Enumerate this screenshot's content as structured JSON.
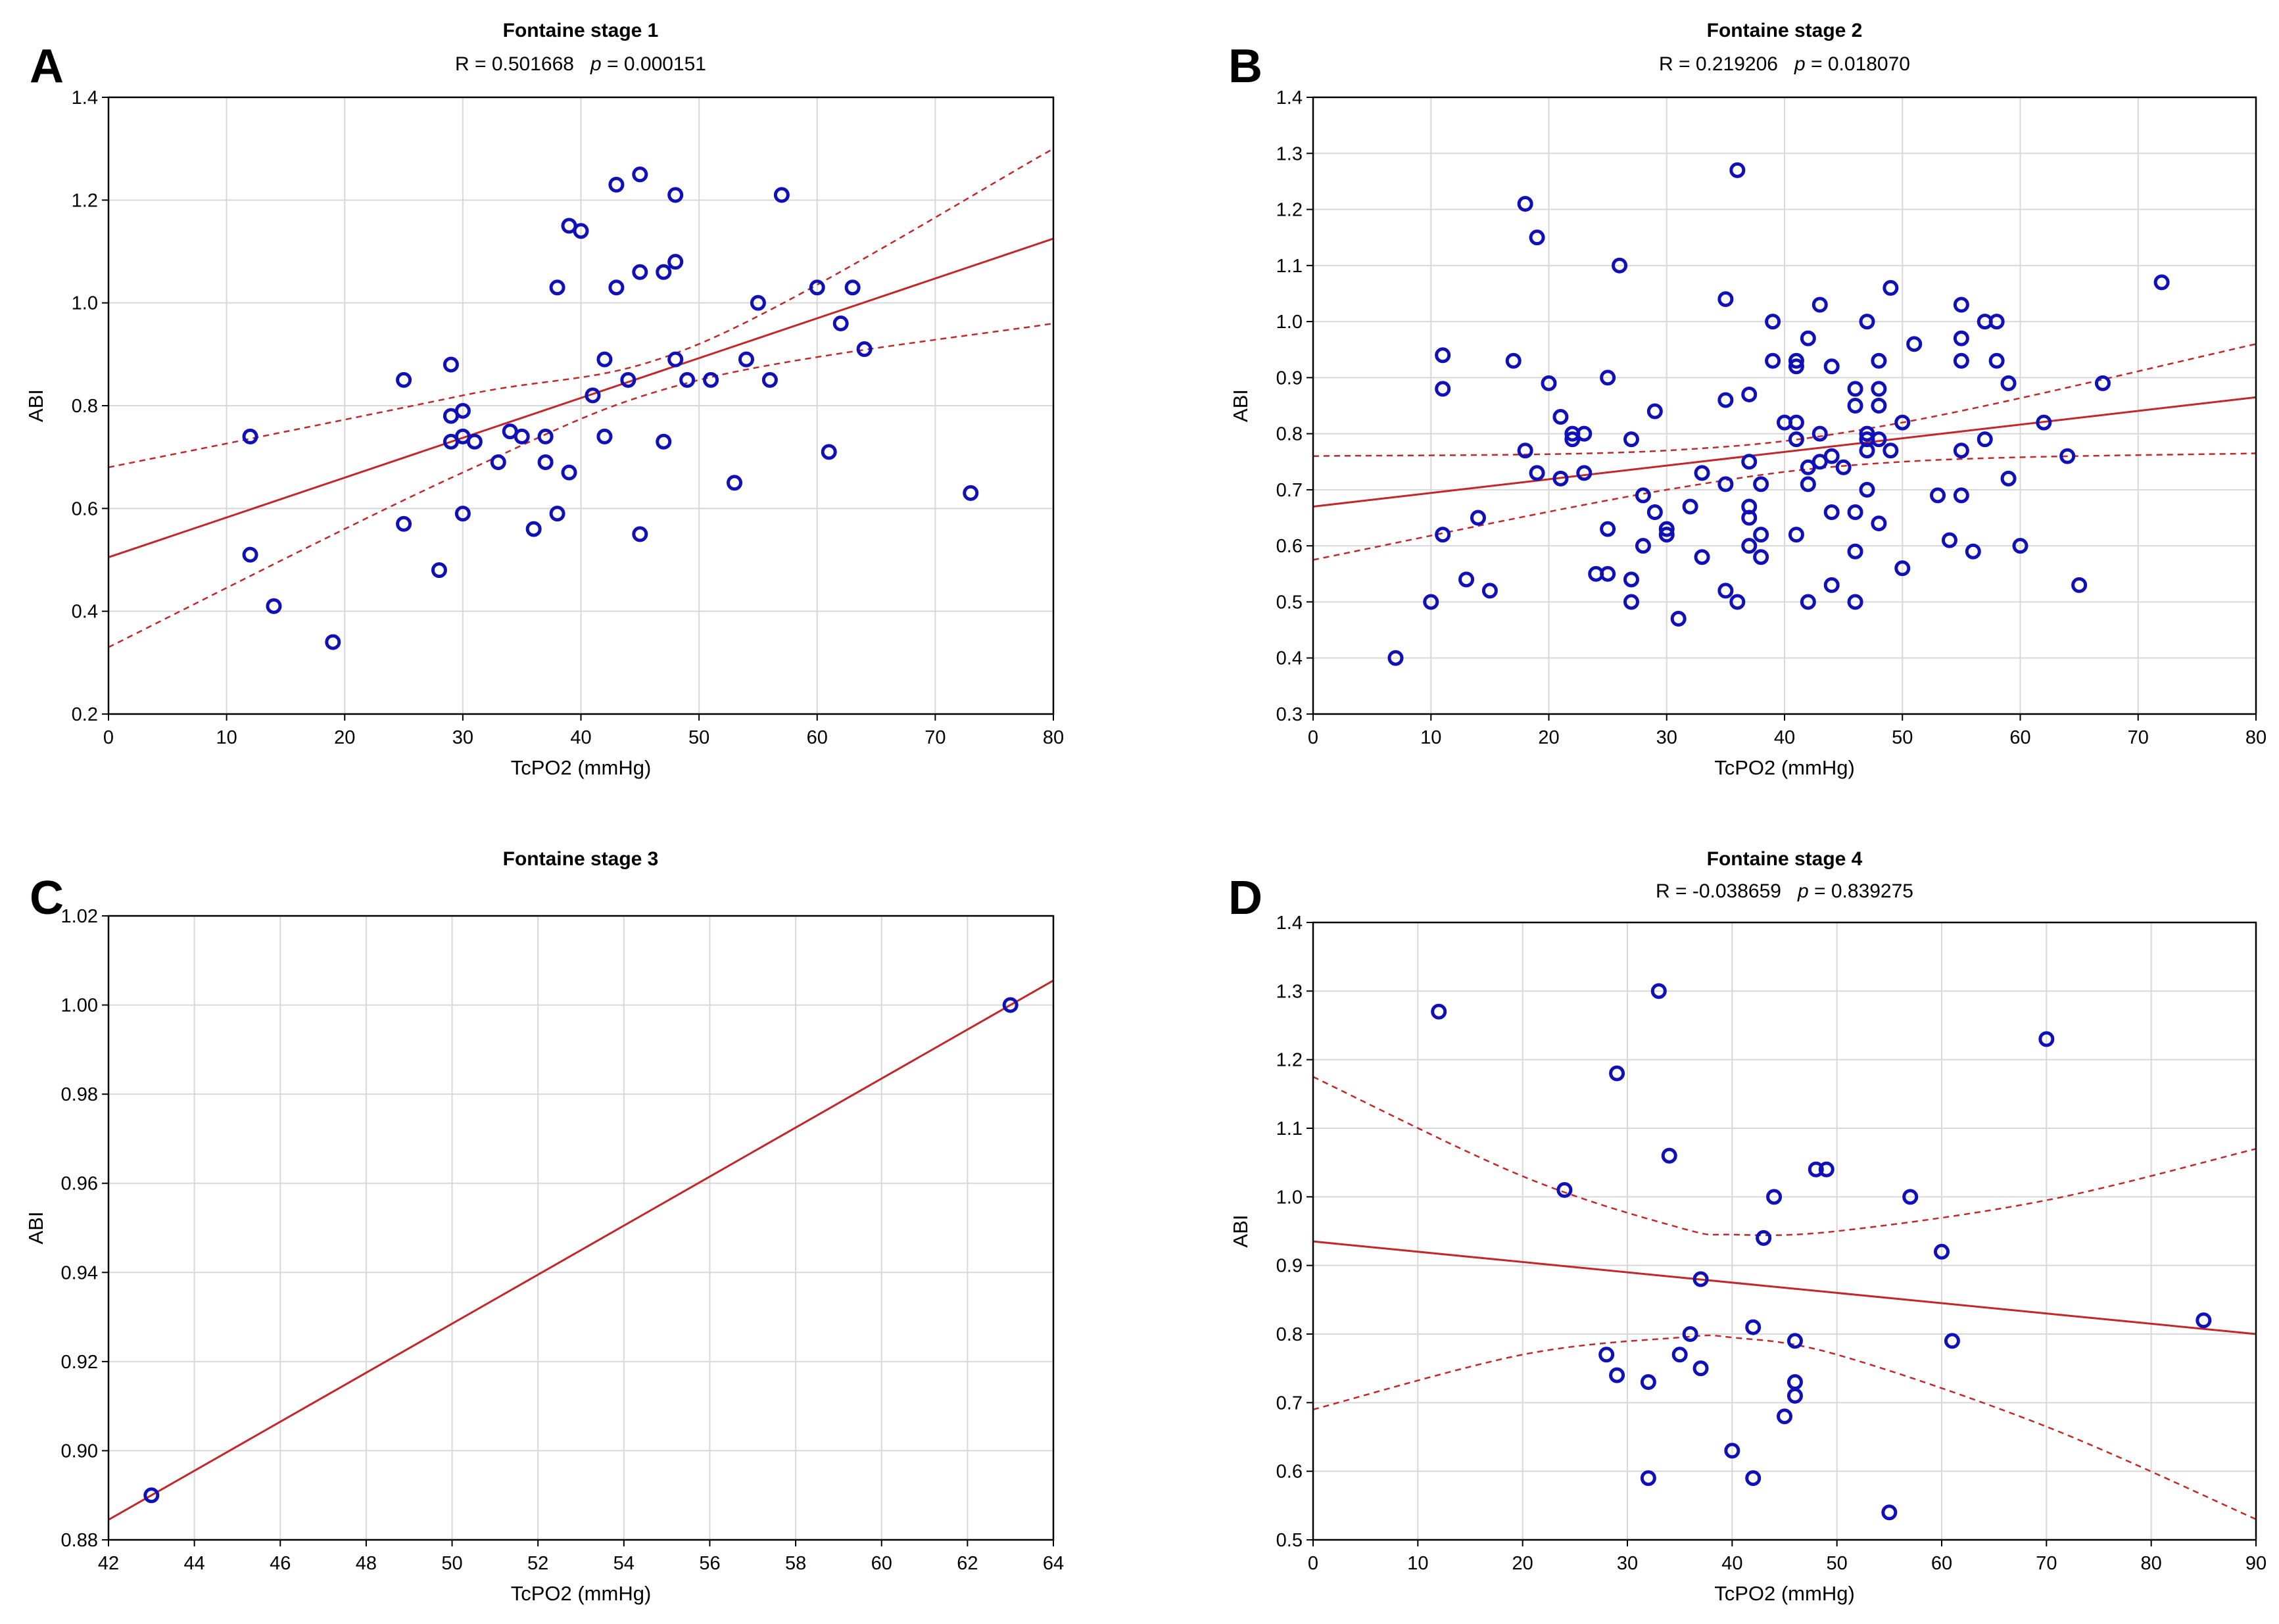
{
  "colors": {
    "points": "#1010b8",
    "fit": "#c0282a",
    "grid": "#d8d8d8"
  },
  "chart_data": [
    {
      "letter": "A",
      "type": "scatter",
      "title": "Fontaine stage 1",
      "stat_r": "R = 0.501668",
      "stat_p_label": "p",
      "stat_p_value": " = 0.000151",
      "xlabel": "TcPO2 (mmHg)",
      "ylabel": "ABI",
      "xlim": [
        0,
        80
      ],
      "ylim": [
        0.2,
        1.4
      ],
      "xticks": [
        0,
        10,
        20,
        30,
        40,
        50,
        60,
        70,
        80
      ],
      "yticks": [
        0.2,
        0.4,
        0.6,
        0.8,
        1.0,
        1.2,
        1.4
      ],
      "ydecimals": 1,
      "fit_line": [
        [
          0,
          0.505
        ],
        [
          80,
          1.125
        ]
      ],
      "ci_upper": [
        [
          0,
          0.68
        ],
        [
          30,
          0.82
        ],
        [
          50,
          0.92
        ],
        [
          80,
          1.3
        ]
      ],
      "ci_lower": [
        [
          0,
          0.33
        ],
        [
          30,
          0.67
        ],
        [
          50,
          0.85
        ],
        [
          80,
          0.96
        ]
      ],
      "points": [
        [
          12,
          0.74
        ],
        [
          12,
          0.51
        ],
        [
          14,
          0.41
        ],
        [
          19,
          0.34
        ],
        [
          25,
          0.85
        ],
        [
          25,
          0.57
        ],
        [
          28,
          0.48
        ],
        [
          29,
          0.88
        ],
        [
          29,
          0.78
        ],
        [
          29,
          0.73
        ],
        [
          30,
          0.79
        ],
        [
          30,
          0.74
        ],
        [
          30,
          0.59
        ],
        [
          31,
          0.73
        ],
        [
          33,
          0.69
        ],
        [
          34,
          0.75
        ],
        [
          35,
          0.74
        ],
        [
          36,
          0.56
        ],
        [
          37,
          0.74
        ],
        [
          37,
          0.69
        ],
        [
          38,
          1.03
        ],
        [
          38,
          0.59
        ],
        [
          39,
          1.15
        ],
        [
          39,
          0.67
        ],
        [
          40,
          1.14
        ],
        [
          41,
          0.82
        ],
        [
          42,
          0.89
        ],
        [
          42,
          0.74
        ],
        [
          43,
          1.23
        ],
        [
          43,
          1.03
        ],
        [
          44,
          0.85
        ],
        [
          45,
          1.25
        ],
        [
          45,
          1.06
        ],
        [
          45,
          0.55
        ],
        [
          47,
          1.06
        ],
        [
          47,
          0.73
        ],
        [
          48,
          1.21
        ],
        [
          48,
          1.08
        ],
        [
          48,
          0.89
        ],
        [
          49,
          0.85
        ],
        [
          51,
          0.85
        ],
        [
          53,
          0.65
        ],
        [
          54,
          0.89
        ],
        [
          55,
          1.0
        ],
        [
          56,
          0.85
        ],
        [
          57,
          1.21
        ],
        [
          60,
          1.03
        ],
        [
          61,
          0.71
        ],
        [
          62,
          0.96
        ],
        [
          63,
          1.03
        ],
        [
          64,
          0.91
        ],
        [
          73,
          0.63
        ]
      ]
    },
    {
      "letter": "B",
      "type": "scatter",
      "title": "Fontaine stage 2",
      "stat_r": "R = 0.219206",
      "stat_p_label": "p",
      "stat_p_value": " = 0.018070",
      "xlabel": "TcPO2 (mmHg)",
      "ylabel": "ABI",
      "xlim": [
        0,
        80
      ],
      "ylim": [
        0.3,
        1.4
      ],
      "xticks": [
        0,
        10,
        20,
        30,
        40,
        50,
        60,
        70,
        80
      ],
      "yticks": [
        0.3,
        0.4,
        0.5,
        0.6,
        0.7,
        0.8,
        0.9,
        1.0,
        1.1,
        1.2,
        1.3,
        1.4
      ],
      "ydecimals": 1,
      "fit_line": [
        [
          0,
          0.67
        ],
        [
          80,
          0.865
        ]
      ],
      "ci_upper": [
        [
          0,
          0.76
        ],
        [
          30,
          0.77
        ],
        [
          50,
          0.82
        ],
        [
          80,
          0.96
        ]
      ],
      "ci_lower": [
        [
          0,
          0.575
        ],
        [
          30,
          0.7
        ],
        [
          50,
          0.75
        ],
        [
          80,
          0.765
        ]
      ],
      "points": [
        [
          7,
          0.4
        ],
        [
          10,
          0.5
        ],
        [
          11,
          0.94
        ],
        [
          11,
          0.88
        ],
        [
          11,
          0.62
        ],
        [
          13,
          0.54
        ],
        [
          14,
          0.65
        ],
        [
          15,
          0.52
        ],
        [
          17,
          0.93
        ],
        [
          18,
          1.21
        ],
        [
          18,
          0.77
        ],
        [
          19,
          1.15
        ],
        [
          19,
          0.73
        ],
        [
          20,
          0.89
        ],
        [
          21,
          0.83
        ],
        [
          21,
          0.72
        ],
        [
          22,
          0.8
        ],
        [
          22,
          0.79
        ],
        [
          23,
          0.8
        ],
        [
          23,
          0.73
        ],
        [
          24,
          0.55
        ],
        [
          25,
          0.9
        ],
        [
          25,
          0.63
        ],
        [
          25,
          0.55
        ],
        [
          26,
          1.1
        ],
        [
          27,
          0.79
        ],
        [
          27,
          0.54
        ],
        [
          27,
          0.5
        ],
        [
          28,
          0.69
        ],
        [
          28,
          0.6
        ],
        [
          29,
          0.84
        ],
        [
          29,
          0.66
        ],
        [
          30,
          0.63
        ],
        [
          30,
          0.62
        ],
        [
          31,
          0.47
        ],
        [
          32,
          0.67
        ],
        [
          33,
          0.73
        ],
        [
          33,
          0.58
        ],
        [
          35,
          1.04
        ],
        [
          35,
          0.86
        ],
        [
          35,
          0.71
        ],
        [
          35,
          0.52
        ],
        [
          36,
          1.27
        ],
        [
          36,
          0.5
        ],
        [
          37,
          0.87
        ],
        [
          37,
          0.75
        ],
        [
          37,
          0.67
        ],
        [
          37,
          0.65
        ],
        [
          37,
          0.6
        ],
        [
          38,
          0.71
        ],
        [
          38,
          0.62
        ],
        [
          38,
          0.58
        ],
        [
          39,
          1.0
        ],
        [
          39,
          0.93
        ],
        [
          40,
          0.82
        ],
        [
          41,
          0.93
        ],
        [
          41,
          0.92
        ],
        [
          41,
          0.82
        ],
        [
          41,
          0.79
        ],
        [
          41,
          0.62
        ],
        [
          42,
          0.97
        ],
        [
          42,
          0.74
        ],
        [
          42,
          0.71
        ],
        [
          42,
          0.5
        ],
        [
          43,
          1.03
        ],
        [
          43,
          0.8
        ],
        [
          43,
          0.75
        ],
        [
          44,
          0.92
        ],
        [
          44,
          0.76
        ],
        [
          44,
          0.66
        ],
        [
          44,
          0.53
        ],
        [
          45,
          0.74
        ],
        [
          46,
          0.88
        ],
        [
          46,
          0.85
        ],
        [
          46,
          0.66
        ],
        [
          46,
          0.59
        ],
        [
          46,
          0.5
        ],
        [
          47,
          1.0
        ],
        [
          47,
          0.8
        ],
        [
          47,
          0.79
        ],
        [
          47,
          0.77
        ],
        [
          47,
          0.7
        ],
        [
          48,
          0.93
        ],
        [
          48,
          0.88
        ],
        [
          48,
          0.85
        ],
        [
          48,
          0.79
        ],
        [
          48,
          0.64
        ],
        [
          49,
          1.06
        ],
        [
          49,
          0.77
        ],
        [
          50,
          0.82
        ],
        [
          50,
          0.56
        ],
        [
          51,
          0.96
        ],
        [
          53,
          0.69
        ],
        [
          54,
          0.61
        ],
        [
          55,
          1.03
        ],
        [
          55,
          0.97
        ],
        [
          55,
          0.93
        ],
        [
          55,
          0.77
        ],
        [
          55,
          0.69
        ],
        [
          56,
          0.59
        ],
        [
          57,
          1.0
        ],
        [
          57,
          0.79
        ],
        [
          58,
          1.0
        ],
        [
          58,
          0.93
        ],
        [
          59,
          0.89
        ],
        [
          59,
          0.72
        ],
        [
          60,
          0.6
        ],
        [
          62,
          0.82
        ],
        [
          64,
          0.76
        ],
        [
          65,
          0.53
        ],
        [
          67,
          0.89
        ],
        [
          72,
          1.07
        ]
      ]
    },
    {
      "letter": "C",
      "type": "scatter",
      "title": "Fontaine stage 3",
      "stat_r": "",
      "stat_p_label": "",
      "stat_p_value": "",
      "xlabel": "TcPO2 (mmHg)",
      "ylabel": "ABI",
      "xlim": [
        42,
        64
      ],
      "ylim": [
        0.88,
        1.02
      ],
      "xticks": [
        42,
        44,
        46,
        48,
        50,
        52,
        54,
        56,
        58,
        60,
        62,
        64
      ],
      "yticks": [
        0.88,
        0.9,
        0.92,
        0.94,
        0.96,
        0.98,
        1.0,
        1.02
      ],
      "ydecimals": 2,
      "fit_line": [
        [
          42,
          0.8845
        ],
        [
          64,
          1.0055
        ]
      ],
      "ci_upper": [],
      "ci_lower": [],
      "points": [
        [
          43,
          0.89
        ],
        [
          63,
          1.0
        ]
      ]
    },
    {
      "letter": "D",
      "type": "scatter",
      "title": "Fontaine stage 4",
      "stat_r": "R = -0.038659",
      "stat_p_label": "p",
      "stat_p_value": " = 0.839275",
      "xlabel": "TcPO2 (mmHg)",
      "ylabel": "ABI",
      "xlim": [
        0,
        90
      ],
      "ylim": [
        0.5,
        1.4
      ],
      "xticks": [
        0,
        10,
        20,
        30,
        40,
        50,
        60,
        70,
        80,
        90
      ],
      "yticks": [
        0.5,
        0.6,
        0.7,
        0.8,
        0.9,
        1.0,
        1.1,
        1.2,
        1.3,
        1.4
      ],
      "ydecimals": 1,
      "fit_line": [
        [
          0,
          0.935
        ],
        [
          90,
          0.8
        ]
      ],
      "ci_upper": [
        [
          0,
          1.175
        ],
        [
          20,
          1.03
        ],
        [
          35,
          0.955
        ],
        [
          40,
          0.945
        ],
        [
          50,
          0.95
        ],
        [
          70,
          0.995
        ],
        [
          90,
          1.07
        ]
      ],
      "ci_lower": [
        [
          0,
          0.69
        ],
        [
          20,
          0.77
        ],
        [
          35,
          0.795
        ],
        [
          40,
          0.795
        ],
        [
          50,
          0.77
        ],
        [
          70,
          0.665
        ],
        [
          90,
          0.53
        ]
      ],
      "points": [
        [
          12,
          1.27
        ],
        [
          24,
          1.01
        ],
        [
          28,
          0.77
        ],
        [
          29,
          1.18
        ],
        [
          29,
          0.74
        ],
        [
          32,
          0.73
        ],
        [
          32,
          0.59
        ],
        [
          33,
          1.3
        ],
        [
          34,
          1.06
        ],
        [
          35,
          0.77
        ],
        [
          36,
          0.8
        ],
        [
          37,
          0.88
        ],
        [
          37,
          0.75
        ],
        [
          40,
          0.63
        ],
        [
          42,
          0.81
        ],
        [
          42,
          0.59
        ],
        [
          43,
          0.94
        ],
        [
          44,
          1.0
        ],
        [
          45,
          0.68
        ],
        [
          46,
          0.79
        ],
        [
          46,
          0.73
        ],
        [
          46,
          0.71
        ],
        [
          48,
          1.04
        ],
        [
          49,
          1.04
        ],
        [
          55,
          0.54
        ],
        [
          57,
          1.0
        ],
        [
          60,
          0.92
        ],
        [
          61,
          0.79
        ],
        [
          70,
          1.23
        ],
        [
          85,
          0.82
        ]
      ]
    }
  ]
}
